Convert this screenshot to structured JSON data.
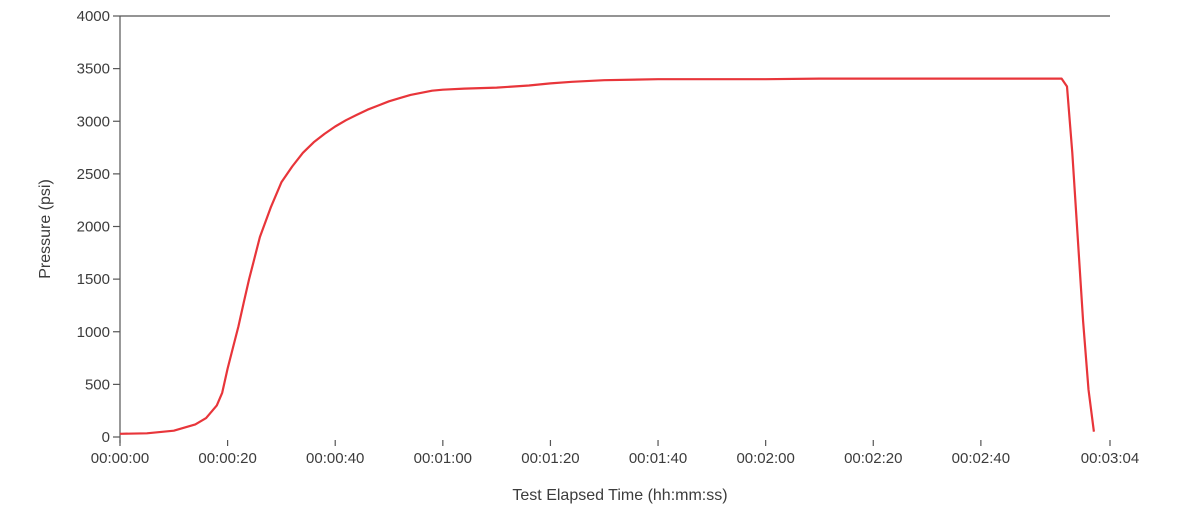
{
  "chart_data": {
    "type": "line",
    "title": "",
    "xlabel": "Test Elapsed Time (hh:mm:ss)",
    "ylabel": "Pressure (psi)",
    "xlim": [
      0,
      184
    ],
    "ylim": [
      0,
      4000
    ],
    "grid": false,
    "legend": "none",
    "x_tick_values": [
      0,
      20,
      40,
      60,
      80,
      100,
      120,
      140,
      160,
      184
    ],
    "x_tick_labels": [
      "00:00:00",
      "00:00:20",
      "00:00:40",
      "00:01:00",
      "00:01:20",
      "00:01:40",
      "00:02:00",
      "00:02:20",
      "00:02:40",
      "00:03:04"
    ],
    "y_tick_values": [
      0,
      500,
      1000,
      1500,
      2000,
      2500,
      3000,
      3500,
      4000
    ],
    "y_tick_labels": [
      "0",
      "500",
      "1000",
      "1500",
      "2000",
      "2500",
      "3000",
      "3500",
      "4000"
    ],
    "series": [
      {
        "color": "#e8353a",
        "x": [
          0,
          5,
          10,
          14,
          16,
          18,
          19,
          20,
          21,
          22,
          23,
          24,
          25,
          26,
          28,
          30,
          32,
          34,
          36,
          38,
          40,
          42,
          44,
          46,
          48,
          50,
          52,
          54,
          56,
          58,
          60,
          64,
          70,
          76,
          80,
          84,
          90,
          100,
          110,
          120,
          130,
          140,
          150,
          160,
          170,
          175,
          176,
          177,
          178,
          179,
          180,
          181
        ],
        "y": [
          30,
          35,
          60,
          120,
          180,
          300,
          420,
          650,
          850,
          1050,
          1280,
          1500,
          1700,
          1900,
          2180,
          2420,
          2570,
          2700,
          2800,
          2880,
          2950,
          3010,
          3060,
          3110,
          3150,
          3190,
          3220,
          3250,
          3270,
          3290,
          3300,
          3310,
          3320,
          3340,
          3360,
          3375,
          3390,
          3400,
          3400,
          3400,
          3405,
          3405,
          3405,
          3405,
          3405,
          3405,
          3330,
          2700,
          1900,
          1100,
          450,
          50
        ]
      }
    ]
  }
}
